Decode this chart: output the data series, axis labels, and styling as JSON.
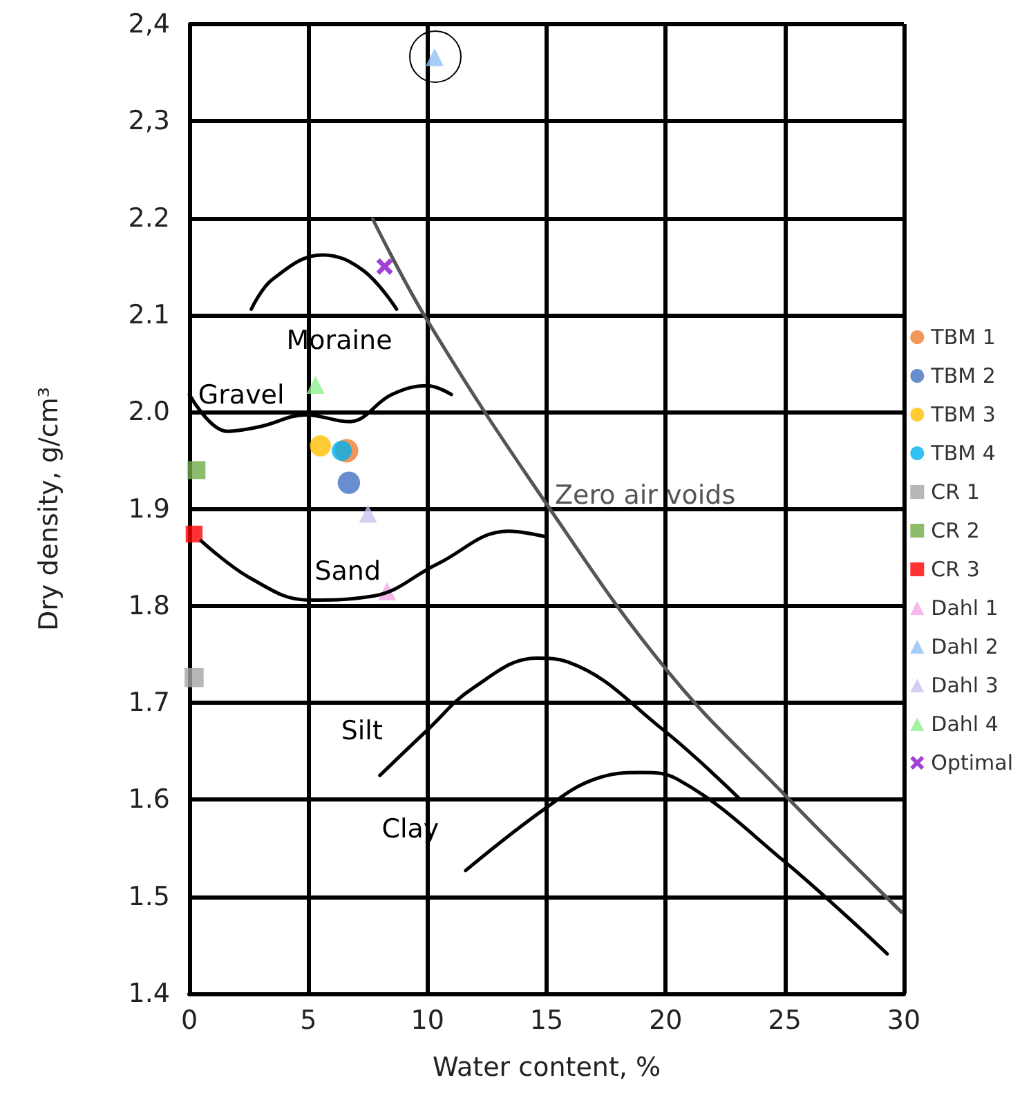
{
  "chart_data": {
    "type": "scatter",
    "xlabel": "Water content, %",
    "ylabel": "Dry density, g/cm³",
    "xlim": [
      0,
      30
    ],
    "xticks": [
      0,
      5,
      10,
      15,
      20,
      25,
      30
    ],
    "ylim": [
      1.4,
      2.4
    ],
    "yticks": [
      1.4,
      1.5,
      1.6,
      1.7,
      1.8,
      1.9,
      {
        "value": 2.0,
        "label": "2.0"
      },
      2.1,
      2.2,
      {
        "value": 2.3,
        "label": "2,3"
      },
      {
        "value": 2.4,
        "label": "2,4"
      }
    ],
    "grid": true,
    "legend": "right",
    "series": [
      {
        "name": "TBM 1",
        "color": "#ed7d31",
        "marker": "circle",
        "x": [
          6.6
        ],
        "values": [
          1.96
        ]
      },
      {
        "name": "TBM 2",
        "color": "#4472c4",
        "marker": "circle",
        "x": [
          6.7
        ],
        "values": [
          1.927
        ]
      },
      {
        "name": "TBM 3",
        "color": "#ffc000",
        "marker": "circle",
        "x": [
          5.5
        ],
        "values": [
          1.965
        ]
      },
      {
        "name": "TBM 4",
        "color": "#00b0f0",
        "marker": "circle",
        "x": [
          6.4
        ],
        "values": [
          1.96
        ]
      },
      {
        "name": "CR 1",
        "color": "#a5a5a5",
        "marker": "square",
        "x": [
          0.2
        ],
        "values": [
          1.726
        ]
      },
      {
        "name": "CR 2",
        "color": "#70ad47",
        "marker": "square",
        "x": [
          0.3
        ],
        "values": [
          1.94
        ]
      },
      {
        "name": "CR 3",
        "color": "#ff0000",
        "marker": "square",
        "x": [
          0.2
        ],
        "values": [
          1.874
        ]
      },
      {
        "name": "Dahl 1",
        "color": "#f4a6e6",
        "marker": "triangle",
        "x": [
          8.3
        ],
        "values": [
          1.815
        ]
      },
      {
        "name": "Dahl 2",
        "color": "#8fc1f2",
        "marker": "triangle",
        "x": [
          10.3
        ],
        "values": [
          2.366
        ]
      },
      {
        "name": "Dahl 3",
        "color": "#c9c4f0",
        "marker": "triangle",
        "x": [
          7.5
        ],
        "values": [
          1.895
        ]
      },
      {
        "name": "Dahl 4",
        "color": "#8ef08e",
        "marker": "triangle",
        "x": [
          5.3
        ],
        "values": [
          2.028
        ]
      },
      {
        "name": "Optimal",
        "color": "#8a10c8",
        "marker": "cross",
        "x": [
          8.2
        ],
        "values": [
          2.15
        ]
      },
      {
        "type": "line",
        "name": "Moraine",
        "color": "#000000",
        "marker": "none",
        "line_style": "solid",
        "x": [
          2.6,
          3.5,
          5.6,
          7.3,
          8.7
        ],
        "values": [
          2.106,
          2.137,
          2.162,
          2.146,
          2.106
        ]
      },
      {
        "type": "line",
        "name": "Gravel",
        "color": "#000000",
        "marker": "none",
        "line_style": "solid",
        "x": [
          0,
          1.6,
          3.0,
          4.9,
          6.7,
          8.5,
          10,
          11
        ],
        "values": [
          2.018,
          1.98,
          1.985,
          1.997,
          1.99,
          2.018,
          2.027,
          2.018
        ]
      },
      {
        "type": "line",
        "name": "Sand",
        "color": "#000000",
        "marker": "none",
        "line_style": "solid",
        "x": [
          0.5,
          2.6,
          5.0,
          7.7,
          10.4,
          13.4,
          15
        ],
        "values": [
          1.867,
          1.828,
          1.806,
          1.81,
          1.843,
          1.877,
          1.871
        ]
      },
      {
        "type": "line",
        "name": "Silt",
        "color": "#000000",
        "marker": "none",
        "line_style": "solid",
        "x": [
          8.0,
          10,
          11.9,
          14.6,
          15.9,
          19.9,
          23.1
        ],
        "values": [
          1.625,
          1.672,
          1.715,
          1.746,
          1.742,
          1.672,
          1.601
        ]
      },
      {
        "type": "line",
        "name": "Clay",
        "color": "#000000",
        "marker": "none",
        "line_style": "solid",
        "x": [
          11.6,
          15,
          17,
          19,
          20.5,
          25,
          29.3
        ],
        "values": [
          1.527,
          1.592,
          1.621,
          1.628,
          1.621,
          1.536,
          1.441
        ]
      },
      {
        "type": "line",
        "name": "Zero air voids",
        "color": "#555555",
        "marker": "none",
        "line_style": "solid",
        "x": [
          7.7,
          10,
          15,
          20.1,
          25,
          29.9
        ],
        "values": [
          2.199,
          2.094,
          1.905,
          1.732,
          1.605,
          1.484
        ]
      }
    ]
  }
}
